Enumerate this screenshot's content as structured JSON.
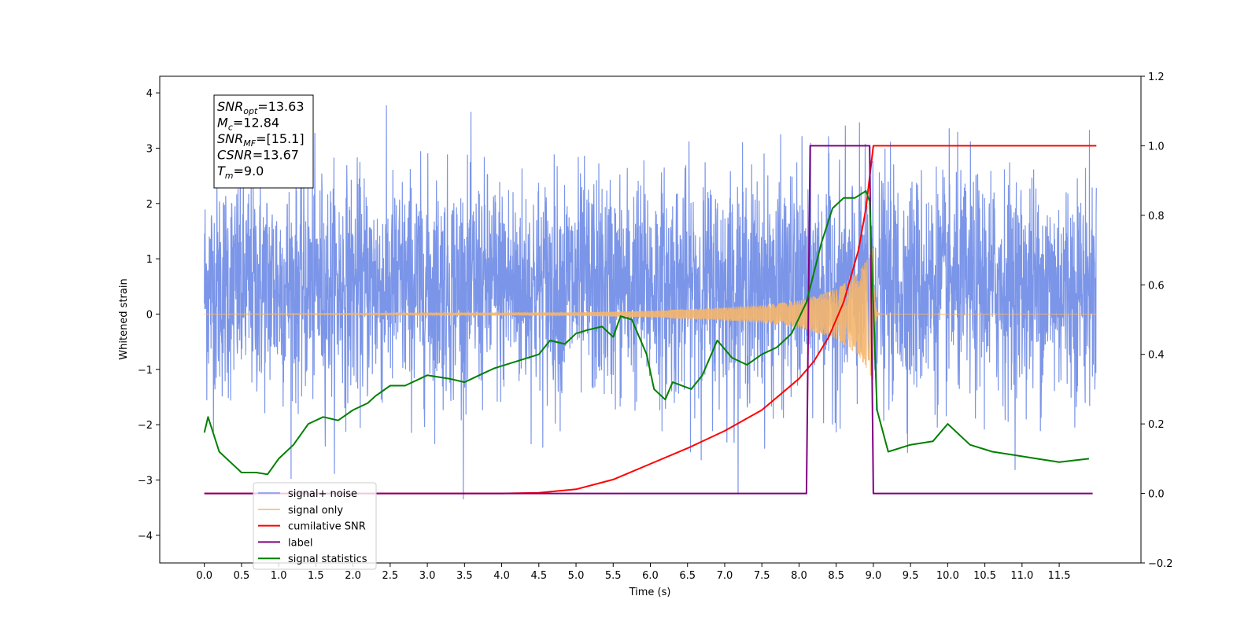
{
  "chart_data": {
    "type": "line",
    "title": "",
    "xlabel": "Time (s)",
    "ylabel": "Whitened strain",
    "y2label": "",
    "xlim": [
      -0.6,
      12.6
    ],
    "ylim": [
      -4.5,
      4.3
    ],
    "y2lim": [
      -0.2,
      1.2
    ],
    "x_ticks": [
      0.0,
      0.5,
      1.0,
      1.5,
      2.0,
      2.5,
      3.0,
      3.5,
      4.0,
      4.5,
      5.0,
      5.5,
      6.0,
      6.5,
      7.0,
      7.5,
      8.0,
      8.5,
      9.0,
      9.5,
      10.0,
      10.5,
      11.0,
      11.5
    ],
    "x_tick_labels": [
      "0.0",
      "0.5",
      "1.0",
      "1.5",
      "2.0",
      "2.5",
      "3.0",
      "3.5",
      "4.0",
      "4.5",
      "5.0",
      "5.5",
      "6.0",
      "6.5",
      "7.0",
      "7.5",
      "8.0",
      "8.5",
      "9.0",
      "9.5",
      "10.0",
      "10.5",
      "11.0",
      "11.5"
    ],
    "y_ticks": [
      -4,
      -3,
      -2,
      -1,
      0,
      1,
      2,
      3,
      4
    ],
    "y_tick_labels": [
      "−4",
      "−3",
      "−2",
      "−1",
      "0",
      "1",
      "2",
      "3",
      "4"
    ],
    "y2_ticks": [
      -0.2,
      0.0,
      0.2,
      0.4,
      0.6,
      0.8,
      1.0,
      1.2
    ],
    "y2_tick_labels": [
      "−0.2",
      "0.0",
      "0.2",
      "0.4",
      "0.6",
      "0.8",
      "1.0",
      "1.2"
    ],
    "grid": false,
    "legend_position": "lower-left",
    "annotation": {
      "lines": [
        {
          "base": "SNR",
          "sub": "opt",
          "value": "=13.63"
        },
        {
          "base": "M",
          "sub": "c",
          "value": "=12.84"
        },
        {
          "base": "SNR",
          "sub": "MF",
          "value": "=[15.1]"
        },
        {
          "base": "CSNR",
          "sub": "",
          "value": "=13.67"
        },
        {
          "base": "T",
          "sub": "m",
          "value": "=9.0"
        }
      ]
    },
    "series": [
      {
        "name": "signal+ noise",
        "axis": "left",
        "color": "#7b95e8",
        "kind": "noise",
        "x_range": [
          0.0,
          12.0
        ],
        "noise_std": 1.0,
        "offset": 0.5,
        "observed_max": 3.9,
        "observed_min": -3.35
      },
      {
        "name": "signal only",
        "axis": "left",
        "color": "#f5b56b",
        "kind": "chirp",
        "x_range": [
          0.0,
          12.0
        ],
        "merger_time": 9.0,
        "envelope": [
          [
            0.0,
            0.0
          ],
          [
            5.0,
            0.03
          ],
          [
            6.0,
            0.06
          ],
          [
            7.0,
            0.12
          ],
          [
            7.5,
            0.16
          ],
          [
            8.0,
            0.25
          ],
          [
            8.5,
            0.45
          ],
          [
            8.8,
            0.75
          ],
          [
            9.0,
            1.2
          ]
        ]
      },
      {
        "name": "cumilative SNR",
        "axis": "right",
        "color": "#ff0000",
        "x": [
          0.0,
          4.0,
          4.5,
          5.0,
          5.5,
          6.0,
          6.5,
          7.0,
          7.5,
          8.0,
          8.2,
          8.4,
          8.6,
          8.8,
          8.9,
          9.0,
          12.0
        ],
        "y": [
          0.0,
          0.0,
          0.002,
          0.012,
          0.04,
          0.085,
          0.13,
          0.18,
          0.24,
          0.33,
          0.38,
          0.45,
          0.55,
          0.7,
          0.82,
          1.0,
          1.0
        ]
      },
      {
        "name": "label",
        "axis": "right",
        "color": "#800080",
        "x": [
          0.0,
          8.1,
          8.15,
          8.95,
          9.0,
          11.95
        ],
        "y": [
          0.0,
          0.0,
          1.0,
          1.0,
          0.0,
          0.0
        ]
      },
      {
        "name": "signal statistics",
        "axis": "right",
        "color": "#008000",
        "x": [
          0.0,
          0.05,
          0.2,
          0.4,
          0.5,
          0.7,
          0.85,
          1.0,
          1.2,
          1.4,
          1.6,
          1.8,
          2.0,
          2.2,
          2.3,
          2.5,
          2.7,
          2.9,
          3.0,
          3.3,
          3.5,
          3.7,
          3.9,
          4.2,
          4.5,
          4.65,
          4.85,
          5.0,
          5.15,
          5.35,
          5.5,
          5.6,
          5.75,
          5.95,
          6.05,
          6.2,
          6.3,
          6.55,
          6.7,
          6.9,
          7.1,
          7.3,
          7.5,
          7.7,
          7.9,
          8.1,
          8.3,
          8.45,
          8.6,
          8.75,
          8.9,
          8.95,
          9.05,
          9.2,
          9.5,
          9.8,
          10.0,
          10.3,
          10.6,
          10.9,
          11.2,
          11.5,
          11.9
        ],
        "y": [
          0.175,
          0.22,
          0.12,
          0.08,
          0.06,
          0.06,
          0.055,
          0.1,
          0.14,
          0.2,
          0.22,
          0.21,
          0.24,
          0.26,
          0.28,
          0.31,
          0.31,
          0.33,
          0.34,
          0.33,
          0.32,
          0.34,
          0.36,
          0.38,
          0.4,
          0.44,
          0.43,
          0.46,
          0.47,
          0.48,
          0.45,
          0.51,
          0.5,
          0.4,
          0.3,
          0.27,
          0.32,
          0.3,
          0.34,
          0.44,
          0.39,
          0.37,
          0.4,
          0.42,
          0.46,
          0.55,
          0.72,
          0.82,
          0.85,
          0.85,
          0.87,
          0.84,
          0.24,
          0.12,
          0.14,
          0.15,
          0.2,
          0.14,
          0.12,
          0.11,
          0.1,
          0.09,
          0.1
        ]
      }
    ]
  }
}
